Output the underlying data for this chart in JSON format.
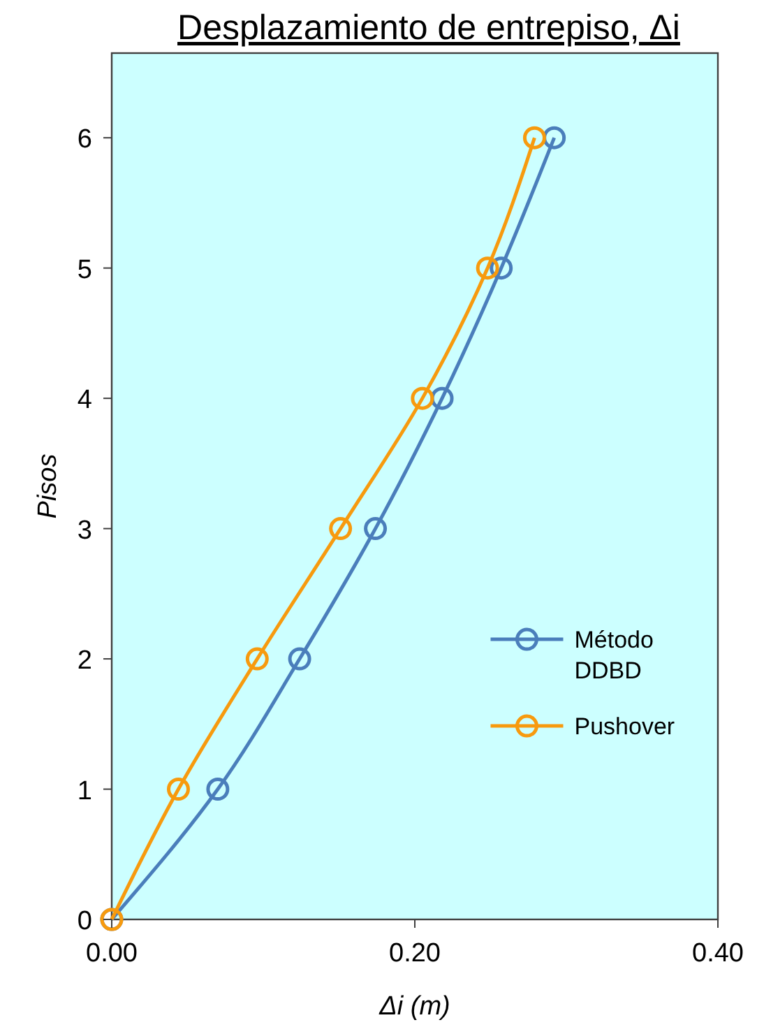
{
  "chart_data": {
    "type": "line",
    "title": "Desplazamiento de entrepiso, Δi",
    "xlabel": "Δi (m)",
    "ylabel": "Pisos",
    "xlim": [
      0,
      0.4
    ],
    "xticks": [
      {
        "value": 0,
        "label": "0.00"
      },
      {
        "value": 0.2,
        "label": "0.20"
      },
      {
        "value": 0.4,
        "label": "0.40"
      }
    ],
    "ylim": [
      0,
      6.65
    ],
    "yticks": [
      0,
      1,
      2,
      3,
      4,
      5,
      6
    ],
    "grid": false,
    "legend": "right",
    "marker": "circle",
    "line_style": "solid",
    "series": [
      {
        "name": "Método DDBD",
        "color": "#4a7ebb",
        "x": [
          0,
          0.07,
          0.124,
          0.174,
          0.218,
          0.257,
          0.292
        ],
        "values": [
          0,
          1,
          2,
          3,
          4,
          5,
          6
        ]
      },
      {
        "name": "Pushover",
        "color": "#f79a0e",
        "x": [
          0,
          0.044,
          0.096,
          0.151,
          0.205,
          0.248,
          0.279
        ],
        "values": [
          0,
          1,
          2,
          3,
          4,
          5,
          6
        ]
      }
    ]
  }
}
